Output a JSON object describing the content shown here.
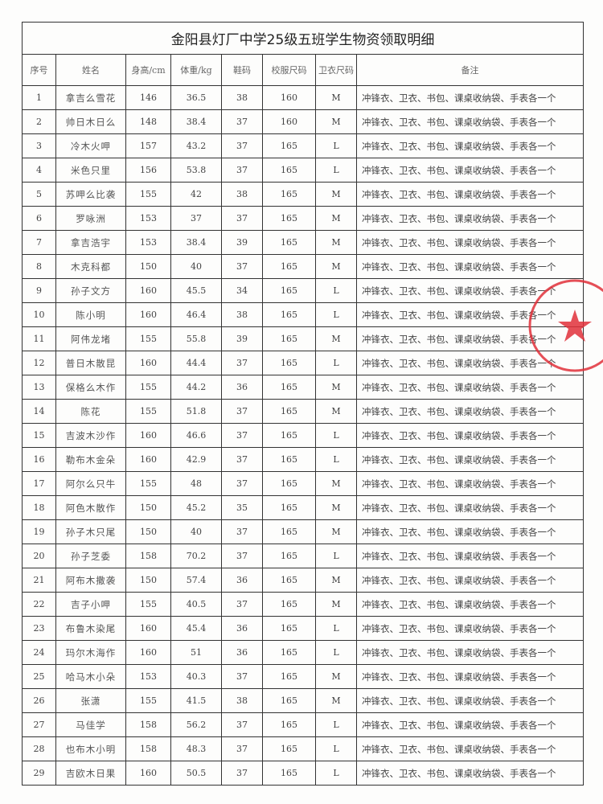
{
  "title": "金阳县灯厂中学25级五班学生物资领取明细",
  "headers": [
    "序号",
    "姓名",
    "身高/cm",
    "体重/kg",
    "鞋码",
    "校服尺码",
    "卫衣尺码",
    "备注"
  ],
  "rows": [
    [
      "1",
      "拿吉么雪花",
      "146",
      "36.5",
      "38",
      "160",
      "M",
      "冲锋衣、卫衣、书包、课桌收纳袋、手表各一个"
    ],
    [
      "2",
      "帅日木日么",
      "148",
      "38.4",
      "37",
      "160",
      "M",
      "冲锋衣、卫衣、书包、课桌收纳袋、手表各一个"
    ],
    [
      "3",
      "冷木火呷",
      "157",
      "43.2",
      "37",
      "165",
      "L",
      "冲锋衣、卫衣、书包、课桌收纳袋、手表各一个"
    ],
    [
      "4",
      "米色只里",
      "156",
      "53.8",
      "37",
      "165",
      "L",
      "冲锋衣、卫衣、书包、课桌收纳袋、手表各一个"
    ],
    [
      "5",
      "苏呷么比袭",
      "155",
      "42",
      "38",
      "165",
      "M",
      "冲锋衣、卫衣、书包、课桌收纳袋、手表各一个"
    ],
    [
      "6",
      "罗咏洲",
      "153",
      "37",
      "37",
      "165",
      "M",
      "冲锋衣、卫衣、书包、课桌收纳袋、手表各一个"
    ],
    [
      "7",
      "拿吉浩宇",
      "153",
      "38.4",
      "39",
      "165",
      "M",
      "冲锋衣、卫衣、书包、课桌收纳袋、手表各一个"
    ],
    [
      "8",
      "木克科都",
      "150",
      "40",
      "37",
      "165",
      "M",
      "冲锋衣、卫衣、书包、课桌收纳袋、手表各一个"
    ],
    [
      "9",
      "孙子文方",
      "160",
      "45.5",
      "34",
      "165",
      "L",
      "冲锋衣、卫衣、书包、课桌收纳袋、手表各一个"
    ],
    [
      "10",
      "陈小明",
      "160",
      "46.4",
      "38",
      "165",
      "L",
      "冲锋衣、卫衣、书包、课桌收纳袋、手表各一个"
    ],
    [
      "11",
      "阿伟龙堵",
      "155",
      "55.8",
      "39",
      "165",
      "M",
      "冲锋衣、卫衣、书包、课桌收纳袋、手表各一个"
    ],
    [
      "12",
      "普日木散昆",
      "160",
      "44.4",
      "37",
      "165",
      "L",
      "冲锋衣、卫衣、书包、课桌收纳袋、手表各一个"
    ],
    [
      "13",
      "保格么木作",
      "155",
      "44.2",
      "36",
      "165",
      "M",
      "冲锋衣、卫衣、书包、课桌收纳袋、手表各一个"
    ],
    [
      "14",
      "陈花",
      "155",
      "51.8",
      "37",
      "165",
      "M",
      "冲锋衣、卫衣、书包、课桌收纳袋、手表各一个"
    ],
    [
      "15",
      "吉波木沙作",
      "160",
      "46.6",
      "37",
      "165",
      "L",
      "冲锋衣、卫衣、书包、课桌收纳袋、手表各一个"
    ],
    [
      "16",
      "勒布木金朵",
      "160",
      "42.9",
      "37",
      "165",
      "L",
      "冲锋衣、卫衣、书包、课桌收纳袋、手表各一个"
    ],
    [
      "17",
      "阿尔么只牛",
      "155",
      "48",
      "37",
      "165",
      "M",
      "冲锋衣、卫衣、书包、课桌收纳袋、手表各一个"
    ],
    [
      "18",
      "阿色木散作",
      "150",
      "45.2",
      "35",
      "165",
      "M",
      "冲锋衣、卫衣、书包、课桌收纳袋、手表各一个"
    ],
    [
      "19",
      "孙子木只尾",
      "150",
      "40",
      "37",
      "165",
      "M",
      "冲锋衣、卫衣、书包、课桌收纳袋、手表各一个"
    ],
    [
      "20",
      "孙子芝委",
      "158",
      "70.2",
      "37",
      "165",
      "L",
      "冲锋衣、卫衣、书包、课桌收纳袋、手表各一个"
    ],
    [
      "21",
      "阿布木撒袭",
      "150",
      "57.4",
      "36",
      "165",
      "M",
      "冲锋衣、卫衣、书包、课桌收纳袋、手表各一个"
    ],
    [
      "22",
      "吉子小呷",
      "155",
      "40.5",
      "37",
      "165",
      "M",
      "冲锋衣、卫衣、书包、课桌收纳袋、手表各一个"
    ],
    [
      "23",
      "布鲁木染尾",
      "160",
      "45.4",
      "36",
      "165",
      "L",
      "冲锋衣、卫衣、书包、课桌收纳袋、手表各一个"
    ],
    [
      "24",
      "玛尔木海作",
      "160",
      "51",
      "36",
      "165",
      "L",
      "冲锋衣、卫衣、书包、课桌收纳袋、手表各一个"
    ],
    [
      "25",
      "哈马木小朵",
      "153",
      "40.3",
      "37",
      "165",
      "M",
      "冲锋衣、卫衣、书包、课桌收纳袋、手表各一个"
    ],
    [
      "26",
      "张潇",
      "155",
      "41.5",
      "38",
      "165",
      "M",
      "冲锋衣、卫衣、书包、课桌收纳袋、手表各一个"
    ],
    [
      "27",
      "马佳学",
      "158",
      "56.2",
      "37",
      "165",
      "L",
      "冲锋衣、卫衣、书包、课桌收纳袋、手表各一个"
    ],
    [
      "28",
      "也布木小明",
      "158",
      "48.3",
      "37",
      "165",
      "L",
      "冲锋衣、卫衣、书包、课桌收纳袋、手表各一个"
    ],
    [
      "29",
      "吉欧木日果",
      "160",
      "50.5",
      "37",
      "165",
      "L",
      "冲锋衣、卫衣、书包、课桌收纳袋、手表各一个"
    ]
  ],
  "colors": {
    "stamp": "#e0303a",
    "border": "#333333"
  }
}
